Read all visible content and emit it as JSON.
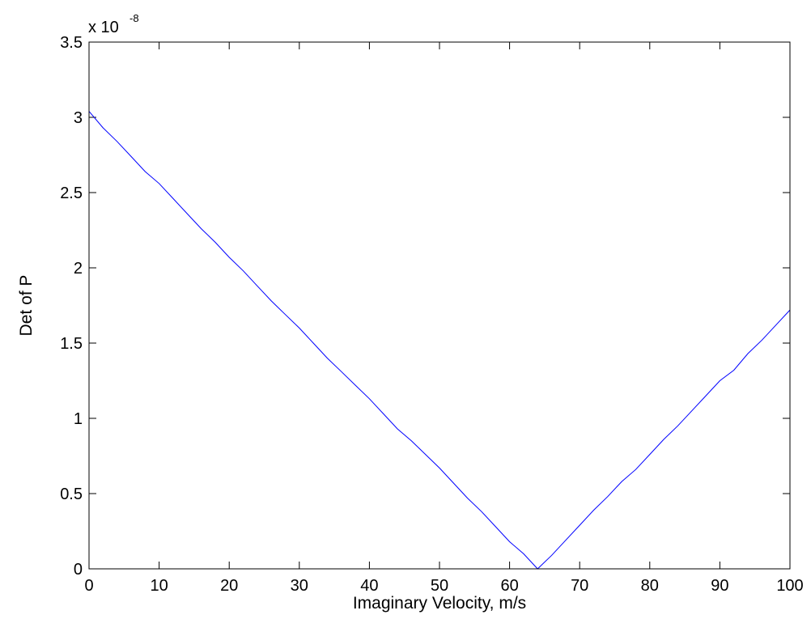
{
  "chart_data": {
    "type": "line",
    "title": "",
    "xlabel": "Imaginary Velocity, m/s",
    "ylabel": "Det of P",
    "y_exponent_prefix": "x 10",
    "y_exponent_power": "-8",
    "xlim": [
      0,
      100
    ],
    "ylim": [
      0,
      3.5
    ],
    "x_ticks": [
      "0",
      "10",
      "20",
      "30",
      "40",
      "50",
      "60",
      "70",
      "80",
      "90",
      "100"
    ],
    "y_ticks": [
      "0",
      "0.5",
      "1",
      "1.5",
      "2",
      "2.5",
      "3",
      "3.5"
    ],
    "grid": false,
    "legend": "none",
    "series": [
      {
        "color": "#0000ff",
        "x": [
          0,
          2,
          4,
          6,
          8,
          10,
          12,
          14,
          16,
          18,
          20,
          22,
          24,
          26,
          28,
          30,
          32,
          34,
          36,
          38,
          40,
          42,
          44,
          46,
          48,
          50,
          52,
          54,
          56,
          58,
          60,
          62,
          64,
          66,
          68,
          70,
          72,
          74,
          76,
          78,
          80,
          82,
          84,
          86,
          88,
          90,
          92,
          94,
          96,
          98,
          100
        ],
        "y": [
          3.04,
          2.93,
          2.84,
          2.74,
          2.64,
          2.56,
          2.46,
          2.36,
          2.26,
          2.17,
          2.07,
          1.98,
          1.88,
          1.78,
          1.69,
          1.6,
          1.5,
          1.4,
          1.31,
          1.22,
          1.13,
          1.03,
          0.93,
          0.85,
          0.76,
          0.67,
          0.57,
          0.47,
          0.38,
          0.28,
          0.18,
          0.1,
          0.0,
          0.09,
          0.19,
          0.29,
          0.39,
          0.48,
          0.58,
          0.66,
          0.76,
          0.86,
          0.95,
          1.05,
          1.15,
          1.25,
          1.32,
          1.43,
          1.52,
          1.62,
          1.72
        ]
      }
    ]
  }
}
